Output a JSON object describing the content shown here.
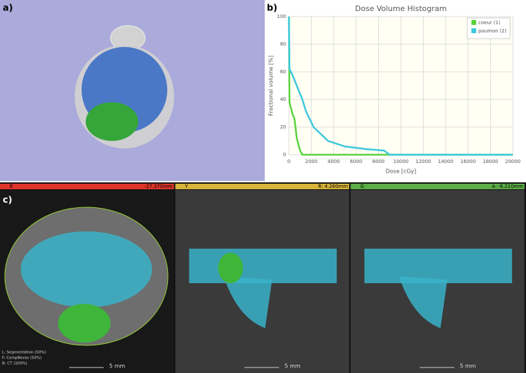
{
  "panels": {
    "a": "a)",
    "b": "b)",
    "c": "c)"
  },
  "chart_data": {
    "type": "line",
    "title": "Dose Volume Histogram",
    "x_label": "Dose [cGy]",
    "y_label": "Fractional volume [%]",
    "x": [
      0,
      50,
      300,
      500,
      700,
      1000,
      1200,
      1500,
      2200,
      3500,
      5000,
      7000,
      8500,
      9000,
      20000
    ],
    "series": [
      {
        "name": "coeur (1)",
        "color": "#5ad23c",
        "values": [
          100,
          38,
          30,
          26,
          12,
          3,
          0,
          0,
          0,
          0,
          0,
          0,
          0,
          0,
          0
        ]
      },
      {
        "name": "poumon (2)",
        "color": "#3cc8dc",
        "values": [
          100,
          62,
          58,
          54,
          50,
          44,
          40,
          32,
          20,
          10,
          6,
          4,
          3,
          0,
          0
        ]
      }
    ],
    "xlim": [
      0,
      20000
    ],
    "xticks": [
      0,
      2000,
      4000,
      6000,
      8000,
      10000,
      12000,
      14000,
      16000,
      18000,
      20000
    ],
    "ylim": [
      0,
      100
    ],
    "yticks": [
      0,
      20,
      40,
      60,
      80,
      100
    ],
    "grid": true,
    "legend": "top-right"
  },
  "views": [
    {
      "letter": "R",
      "offset": "-27.370mm",
      "color": "#e0352b",
      "scale": "5 mm"
    },
    {
      "letter": "Y",
      "offset": "R: 4.260mm",
      "color": "#d8b43a",
      "scale": "5 mm"
    },
    {
      "letter": "G",
      "offset": "A: -6.210mm",
      "color": "#5cae48",
      "scale": "5 mm"
    }
  ],
  "overlay_text": [
    "L: Segmentation (50%)",
    "F: CompRevas (50%)",
    "B: CT (100%)"
  ]
}
